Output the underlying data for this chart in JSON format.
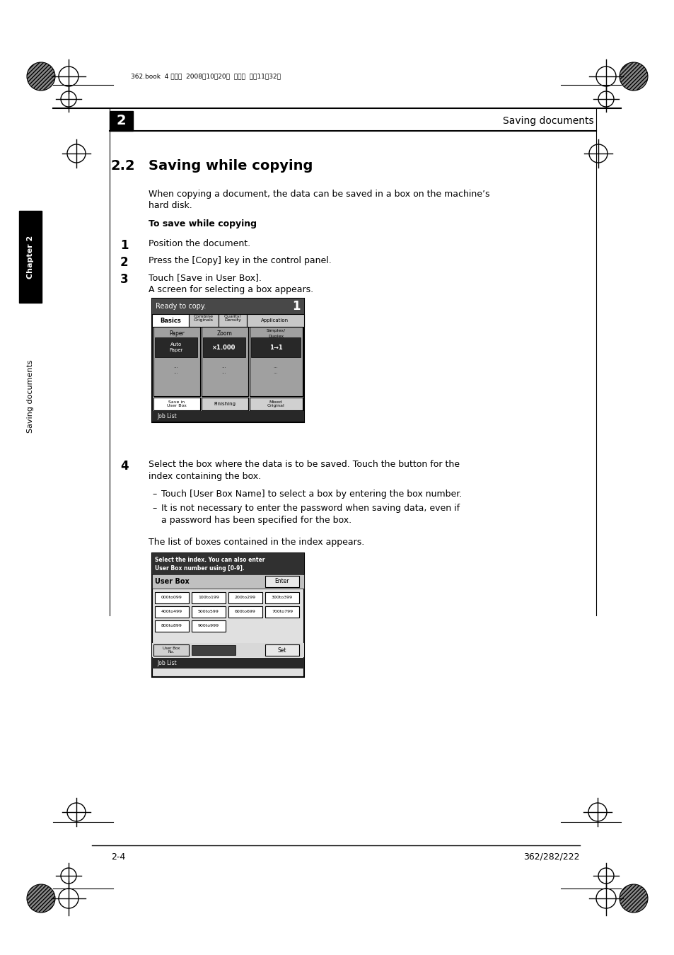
{
  "bg_color": "#ffffff",
  "page_width": 9.54,
  "page_height": 13.5,
  "dpi": 100,
  "header_text": "362.book  4 ページ  2008年10月20日  月曜日  午前11晄32分",
  "chapter_num": "2",
  "chapter_header_right": "Saving documents",
  "section_num": "2.2",
  "section_title": "Saving while copying",
  "body_text1": "When copying a document, the data can be saved in a box on the machine’s",
  "body_text1b": "hard disk.",
  "subsection_title": "To save while copying",
  "step1": "Position the document.",
  "step2": "Press the [Copy] key in the control panel.",
  "step3": "Touch [Save in User Box].",
  "step3b": "A screen for selecting a box appears.",
  "step4": "Select the box where the data is to be saved. Touch the button for the",
  "step4b": "index containing the box.",
  "bullet1": "Touch [User Box Name] to select a box by entering the box number.",
  "bullet2": "It is not necessary to enter the password when saving data, even if",
  "bullet2b": "a password has been specified for the box.",
  "footer_note": "The list of boxes contained in the index appears.",
  "page_num_left": "2-4",
  "page_num_right": "362/282/222",
  "sidebar_ch": "Chapter 2",
  "sidebar_doc": "Saving documents"
}
